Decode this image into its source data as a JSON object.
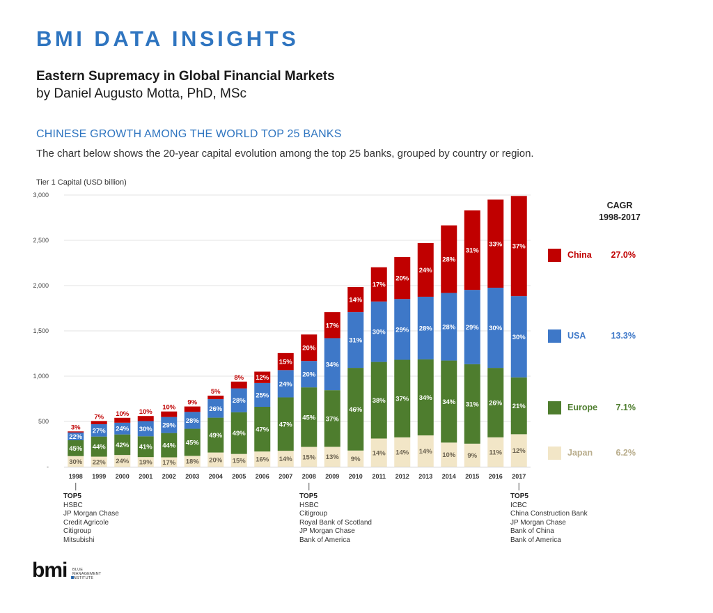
{
  "header": {
    "brand": "BMI DATA INSIGHTS",
    "title": "Eastern Supremacy in Global Financial Markets",
    "author": "by Daniel Augusto Motta, PhD, MSc",
    "section_title": "CHINESE GROWTH AMONG THE WORLD TOP 25 BANKS",
    "description": "The chart below shows the 20-year capital evolution among the top 25 banks, grouped by country or region."
  },
  "colors": {
    "brand_blue": "#2f75c0",
    "china": "#c00000",
    "usa": "#3e78c8",
    "europe": "#4e7d2e",
    "japan": "#f2e6c7"
  },
  "chart_data": {
    "type": "bar",
    "stacked": true,
    "ylabel": "Tier 1 Capital (USD billion)",
    "ylim": [
      0,
      3000
    ],
    "yticks": [
      "-",
      "500",
      "1,000",
      "1,500",
      "2,000",
      "2,500",
      "3,000"
    ],
    "categories": [
      "1998",
      "1999",
      "2000",
      "2001",
      "2002",
      "2003",
      "2004",
      "2005",
      "2006",
      "2007",
      "2008",
      "2009",
      "2010",
      "2011",
      "2012",
      "2013",
      "2014",
      "2015",
      "2016",
      "2017"
    ],
    "totals": [
      390,
      505,
      540,
      560,
      610,
      665,
      785,
      940,
      1050,
      1255,
      1460,
      1690,
      1985,
      2225,
      2315,
      2470,
      2665,
      2830,
      2950,
      2990
    ],
    "series": [
      {
        "name": "Japan",
        "color": "#f2e6c7",
        "labels": [
          "30%",
          "22%",
          "24%",
          "19%",
          "17%",
          "18%",
          "20%",
          "15%",
          "16%",
          "14%",
          "15%",
          "13%",
          "9%",
          "14%",
          "14%",
          "14%",
          "10%",
          "9%",
          "11%",
          "12%"
        ]
      },
      {
        "name": "Europe",
        "color": "#4e7d2e",
        "labels": [
          "45%",
          "44%",
          "42%",
          "41%",
          "44%",
          "45%",
          "49%",
          "49%",
          "47%",
          "47%",
          "45%",
          "37%",
          "46%",
          "38%",
          "37%",
          "34%",
          "34%",
          "31%",
          "26%",
          "21%"
        ]
      },
      {
        "name": "USA",
        "color": "#3e78c8",
        "labels": [
          "22%",
          "27%",
          "24%",
          "30%",
          "29%",
          "28%",
          "26%",
          "28%",
          "25%",
          "24%",
          "20%",
          "34%",
          "31%",
          "30%",
          "29%",
          "28%",
          "28%",
          "29%",
          "30%",
          "30%"
        ]
      },
      {
        "name": "China",
        "color": "#c00000",
        "labels": [
          "3%",
          "7%",
          "10%",
          "10%",
          "10%",
          "9%",
          "5%",
          "8%",
          "12%",
          "15%",
          "20%",
          "17%",
          "14%",
          "17%",
          "20%",
          "24%",
          "28%",
          "31%",
          "33%",
          "37%"
        ]
      }
    ],
    "cagr_title": [
      "CAGR",
      "1998-2017"
    ],
    "legend": [
      {
        "name": "China",
        "value": "27.0%",
        "color": "#c00000",
        "text_color": "#c00000"
      },
      {
        "name": "USA",
        "value": "13.3%",
        "color": "#3e78c8",
        "text_color": "#3e78c8"
      },
      {
        "name": "Europe",
        "value": "7.1%",
        "color": "#4e7d2e",
        "text_color": "#4e7d2e"
      },
      {
        "name": "Japan",
        "value": "6.2%",
        "color": "#f2e6c7",
        "text_color": "#b9ad8c"
      }
    ]
  },
  "top5": [
    {
      "heading": "TOP5",
      "banks": [
        "HSBC",
        "JP Morgan Chase",
        "Credit Agricole",
        "Citigroup",
        "Mitsubishi"
      ]
    },
    {
      "heading": "TOP5",
      "banks": [
        "HSBC",
        "Citigroup",
        "Royal Bank of Scotland",
        "JP Morgan Chase",
        "Bank of America"
      ]
    },
    {
      "heading": "TOP5",
      "banks": [
        "ICBC",
        "China Construction Bank",
        "JP Morgan Chase",
        "Bank of China",
        "Bank of America"
      ]
    }
  ],
  "logo": {
    "word": "bmi",
    "sub_lines": [
      "BLUE",
      "MANAGEMENT",
      "INSTITUTE"
    ]
  }
}
